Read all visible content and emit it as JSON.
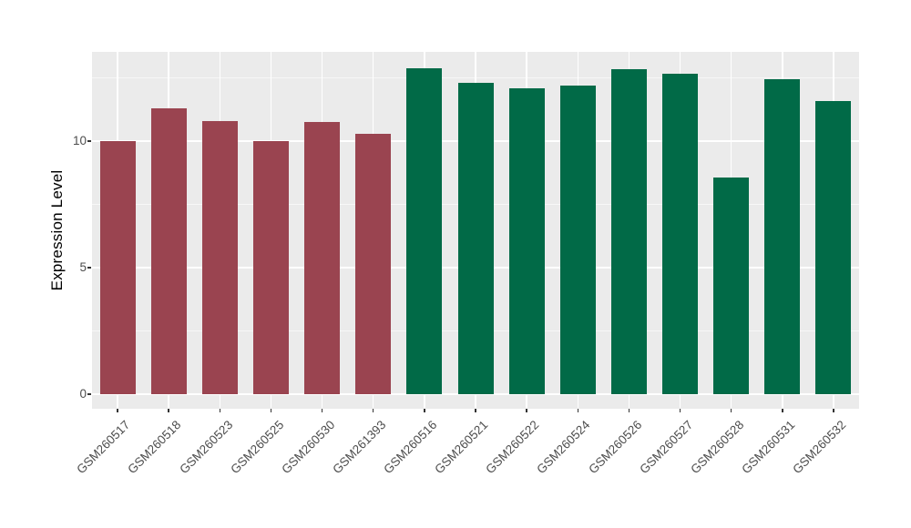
{
  "chart_data": {
    "type": "bar",
    "title": "",
    "xlabel": "",
    "ylabel": "Expression Level",
    "categories": [
      "GSM260517",
      "GSM260518",
      "GSM260523",
      "GSM260525",
      "GSM260530",
      "GSM261393",
      "GSM260516",
      "GSM260521",
      "GSM260522",
      "GSM260524",
      "GSM260526",
      "GSM260527",
      "GSM260528",
      "GSM260531",
      "GSM260532"
    ],
    "values": [
      10.0,
      11.3,
      10.8,
      10.0,
      10.75,
      10.3,
      12.9,
      12.3,
      12.1,
      12.2,
      12.85,
      12.65,
      8.55,
      12.45,
      11.6
    ],
    "bar_colors": [
      "#9A4450",
      "#9A4450",
      "#9A4450",
      "#9A4450",
      "#9A4450",
      "#9A4450",
      "#016A47",
      "#016A47",
      "#016A47",
      "#016A47",
      "#016A47",
      "#016A47",
      "#016A47",
      "#016A47",
      "#016A47"
    ],
    "color_groups": [
      {
        "color": "#9A4450",
        "samples": [
          "GSM260517",
          "GSM260518",
          "GSM260523",
          "GSM260525",
          "GSM260530",
          "GSM261393"
        ]
      },
      {
        "color": "#016A47",
        "samples": [
          "GSM260516",
          "GSM260521",
          "GSM260522",
          "GSM260524",
          "GSM260526",
          "GSM260527",
          "GSM260528",
          "GSM260531",
          "GSM260532"
        ]
      }
    ],
    "yticks": [
      0,
      5,
      10
    ],
    "ylim": [
      -0.575,
      13.53
    ],
    "grid": {
      "major": [
        0,
        5,
        10
      ],
      "minor": [
        2.5,
        7.5,
        12.5
      ],
      "color": "#FFFFFF",
      "vertical_at_categories": true
    },
    "legend": "none",
    "style": {
      "panel_background": "#EBEBEB",
      "grid_color": "#FFFFFF",
      "tick_label_color": "#4D4D4D",
      "axis_title_color": "#000000",
      "tick_mark_color": "#333333",
      "figure_background": "#FFFFFF"
    }
  }
}
